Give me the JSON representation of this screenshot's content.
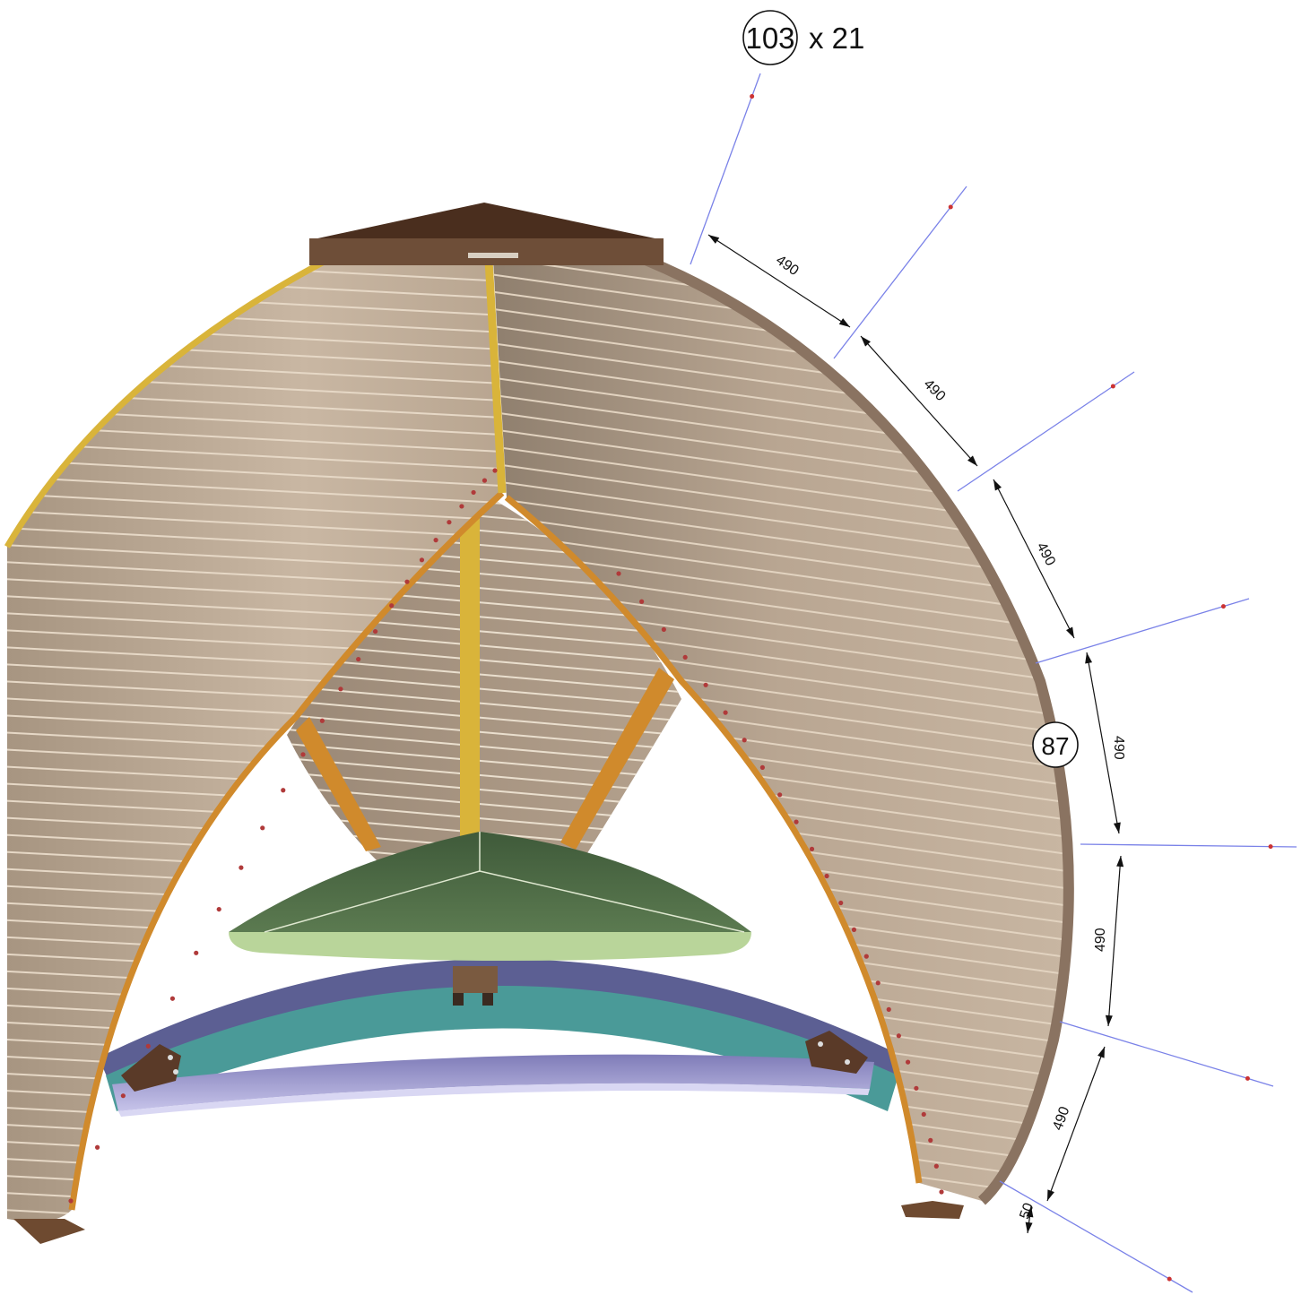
{
  "callouts": {
    "part_top": {
      "number": "103",
      "qty": "x 21"
    },
    "part_side": {
      "number": "87"
    }
  },
  "dimensions": {
    "d1": "490",
    "d2": "490",
    "d3": "490",
    "d4": "490",
    "d5": "490",
    "d6": "490",
    "d7": "50"
  },
  "colors": {
    "slat_light": "#c7b49f",
    "slat_dark": "#9b8a78",
    "rib_orange": "#d08a2c",
    "rib_yellow": "#d9b43a",
    "roof_cap": "#5a3c28",
    "seat_green": "#4e6a44",
    "seat_edge": "#b9d59a",
    "ring_teal": "#4a9a98",
    "ring_blue": "#5c5f93",
    "ring_lavender": "#a9a6d6",
    "dim_line": "#7a82e8",
    "dim_marker": "#cc3333"
  }
}
